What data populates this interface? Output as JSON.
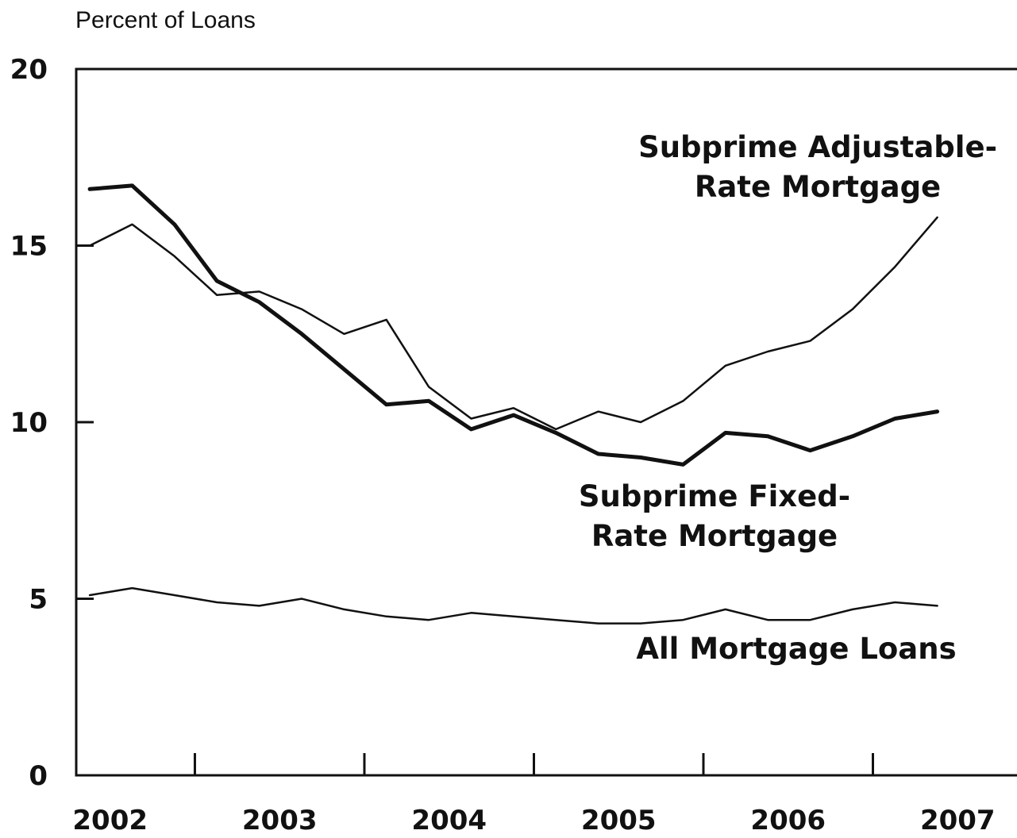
{
  "chart_data": {
    "type": "line",
    "title": "",
    "ylabel": "Percent of Loans",
    "xlabel": "",
    "ylim": [
      0,
      20
    ],
    "xlim": [
      2002,
      2007
    ],
    "yticks": [
      0,
      5,
      10,
      15,
      20
    ],
    "xticks": [
      2002,
      2003,
      2004,
      2005,
      2006,
      2007
    ],
    "grid": false,
    "series": [
      {
        "name": "Subprime Adjustable-Rate Mortgage",
        "annotation_lines": [
          "Subprime Adjustable-",
          "Rate Mortgage"
        ],
        "line_weight": "thin",
        "x": [
          2001.88,
          2002.13,
          2002.38,
          2002.63,
          2002.88,
          2003.13,
          2003.38,
          2003.63,
          2003.88,
          2004.13,
          2004.38,
          2004.63,
          2004.88,
          2005.13,
          2005.38,
          2005.63,
          2005.88,
          2006.13,
          2006.38,
          2006.63,
          2006.88
        ],
        "values": [
          15.0,
          15.6,
          14.7,
          13.6,
          13.7,
          13.2,
          12.5,
          12.9,
          11.0,
          10.1,
          10.4,
          9.8,
          10.3,
          10.0,
          10.6,
          11.6,
          12.0,
          12.3,
          13.2,
          14.4,
          15.8
        ]
      },
      {
        "name": "Subprime Fixed-Rate Mortgage",
        "annotation_lines": [
          "Subprime Fixed-",
          "Rate Mortgage"
        ],
        "line_weight": "thick",
        "x": [
          2001.88,
          2002.13,
          2002.38,
          2002.63,
          2002.88,
          2003.13,
          2003.38,
          2003.63,
          2003.88,
          2004.13,
          2004.38,
          2004.63,
          2004.88,
          2005.13,
          2005.38,
          2005.63,
          2005.88,
          2006.13,
          2006.38,
          2006.63,
          2006.88
        ],
        "values": [
          16.6,
          16.7,
          15.6,
          14.0,
          13.4,
          12.5,
          11.5,
          10.5,
          10.6,
          9.8,
          10.2,
          9.7,
          9.1,
          9.0,
          8.8,
          9.7,
          9.6,
          9.2,
          9.6,
          10.1,
          10.3
        ]
      },
      {
        "name": "All Mortgage Loans",
        "annotation_lines": [
          "All Mortgage Loans"
        ],
        "line_weight": "thin",
        "x": [
          2001.88,
          2002.13,
          2002.38,
          2002.63,
          2002.88,
          2003.13,
          2003.38,
          2003.63,
          2003.88,
          2004.13,
          2004.38,
          2004.63,
          2004.88,
          2005.13,
          2005.38,
          2005.63,
          2005.88,
          2006.13,
          2006.38,
          2006.63,
          2006.88
        ],
        "values": [
          5.1,
          5.3,
          5.1,
          4.9,
          4.8,
          5.0,
          4.7,
          4.5,
          4.4,
          4.6,
          4.5,
          4.4,
          4.3,
          4.3,
          4.4,
          4.7,
          4.4,
          4.4,
          4.7,
          4.9,
          4.8
        ]
      }
    ],
    "colors": {
      "line": "#111111",
      "axis": "#111111",
      "background": "#ffffff"
    }
  }
}
